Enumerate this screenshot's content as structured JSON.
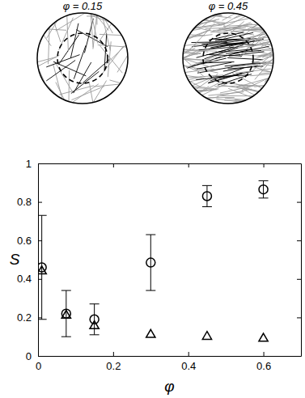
{
  "chart_data": {
    "type": "scatter",
    "annotations": [
      "φ = 0.15",
      "φ = 0.45"
    ],
    "xlabel": "φ",
    "ylabel": "S",
    "xlim": [
      0,
      0.7
    ],
    "xticks": [
      0,
      0.2,
      0.4,
      0.6
    ],
    "ylim": [
      0,
      1
    ],
    "yticks": [
      0,
      0.2,
      0.4,
      0.6,
      0.8,
      1
    ],
    "x": [
      0.01,
      0.075,
      0.15,
      0.3,
      0.45,
      0.6
    ],
    "series": [
      {
        "marker": "circle",
        "color": "#000000",
        "values": [
          0.46,
          0.22,
          0.19,
          0.485,
          0.83,
          0.865
        ],
        "errors": [
          0.27,
          0.12,
          0.08,
          0.145,
          0.055,
          0.045
        ]
      },
      {
        "marker": "triangle",
        "color": "#000000",
        "values": [
          0.44,
          0.21,
          0.155,
          0.11,
          0.1,
          0.09
        ]
      }
    ]
  }
}
